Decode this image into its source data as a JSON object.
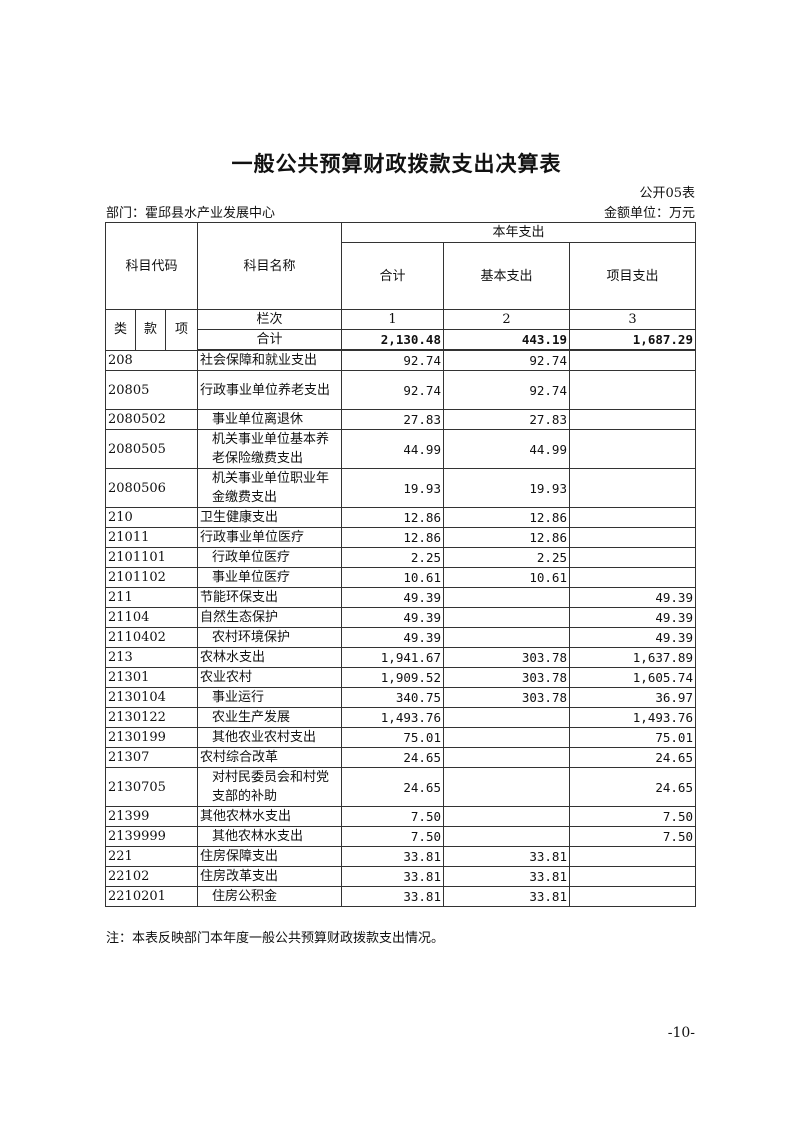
{
  "title": "一般公共预算财政拨款支出决算表",
  "form_code": "公开05表",
  "department": "部门：霍邱县水产业发展中心",
  "unit": "金额单位：万元",
  "header": {
    "subject_code": "科目代码",
    "subject_name": "科目名称",
    "current_year": "本年支出",
    "total": "合计",
    "basic": "基本支出",
    "project": "项目支出",
    "lei": "类",
    "kuan": "款",
    "xiang": "项",
    "column_no": "栏次",
    "col1": "1",
    "col2": "2",
    "col3": "3"
  },
  "grand_total": {
    "label": "合计",
    "total": "2,130.48",
    "basic": "443.19",
    "project": "1,687.29"
  },
  "rows": [
    {
      "code": "208",
      "name": "社会保障和就业支出",
      "total": "92.74",
      "basic": "92.74",
      "project": "",
      "lvl": 0
    },
    {
      "code": "20805",
      "name": "行政事业单位养老支出",
      "total": "92.74",
      "basic": "92.74",
      "project": "",
      "lvl": 0,
      "tall": true
    },
    {
      "code": "2080502",
      "name": "事业单位离退休",
      "total": "27.83",
      "basic": "27.83",
      "project": "",
      "lvl": 1
    },
    {
      "code": "2080505",
      "name": "机关事业单位基本养老保险缴费支出",
      "total": "44.99",
      "basic": "44.99",
      "project": "",
      "lvl": 1,
      "tall": true
    },
    {
      "code": "2080506",
      "name": "机关事业单位职业年金缴费支出",
      "total": "19.93",
      "basic": "19.93",
      "project": "",
      "lvl": 1,
      "tall": true
    },
    {
      "code": "210",
      "name": "卫生健康支出",
      "total": "12.86",
      "basic": "12.86",
      "project": "",
      "lvl": 0
    },
    {
      "code": "21011",
      "name": "行政事业单位医疗",
      "total": "12.86",
      "basic": "12.86",
      "project": "",
      "lvl": 0
    },
    {
      "code": "2101101",
      "name": "行政单位医疗",
      "total": "2.25",
      "basic": "2.25",
      "project": "",
      "lvl": 1
    },
    {
      "code": "2101102",
      "name": "事业单位医疗",
      "total": "10.61",
      "basic": "10.61",
      "project": "",
      "lvl": 1
    },
    {
      "code": "211",
      "name": "节能环保支出",
      "total": "49.39",
      "basic": "",
      "project": "49.39",
      "lvl": 0
    },
    {
      "code": "21104",
      "name": "自然生态保护",
      "total": "49.39",
      "basic": "",
      "project": "49.39",
      "lvl": 0
    },
    {
      "code": "2110402",
      "name": "农村环境保护",
      "total": "49.39",
      "basic": "",
      "project": "49.39",
      "lvl": 1
    },
    {
      "code": "213",
      "name": "农林水支出",
      "total": "1,941.67",
      "basic": "303.78",
      "project": "1,637.89",
      "lvl": 0
    },
    {
      "code": "21301",
      "name": "农业农村",
      "total": "1,909.52",
      "basic": "303.78",
      "project": "1,605.74",
      "lvl": 0
    },
    {
      "code": "2130104",
      "name": "事业运行",
      "total": "340.75",
      "basic": "303.78",
      "project": "36.97",
      "lvl": 1
    },
    {
      "code": "2130122",
      "name": "农业生产发展",
      "total": "1,493.76",
      "basic": "",
      "project": "1,493.76",
      "lvl": 1
    },
    {
      "code": "2130199",
      "name": "其他农业农村支出",
      "total": "75.01",
      "basic": "",
      "project": "75.01",
      "lvl": 1
    },
    {
      "code": "21307",
      "name": "农村综合改革",
      "total": "24.65",
      "basic": "",
      "project": "24.65",
      "lvl": 0
    },
    {
      "code": "2130705",
      "name": "对村民委员会和村党支部的补助",
      "total": "24.65",
      "basic": "",
      "project": "24.65",
      "lvl": 1,
      "tall": true
    },
    {
      "code": "21399",
      "name": "其他农林水支出",
      "total": "7.50",
      "basic": "",
      "project": "7.50",
      "lvl": 0
    },
    {
      "code": "2139999",
      "name": "其他农林水支出",
      "total": "7.50",
      "basic": "",
      "project": "7.50",
      "lvl": 1
    },
    {
      "code": "221",
      "name": "住房保障支出",
      "total": "33.81",
      "basic": "33.81",
      "project": "",
      "lvl": 0
    },
    {
      "code": "22102",
      "name": "住房改革支出",
      "total": "33.81",
      "basic": "33.81",
      "project": "",
      "lvl": 0
    },
    {
      "code": "2210201",
      "name": "住房公积金",
      "total": "33.81",
      "basic": "33.81",
      "project": "",
      "lvl": 1
    }
  ],
  "note": "注：本表反映部门本年度一般公共预算财政拨款支出情况。",
  "page_number": "-10-"
}
